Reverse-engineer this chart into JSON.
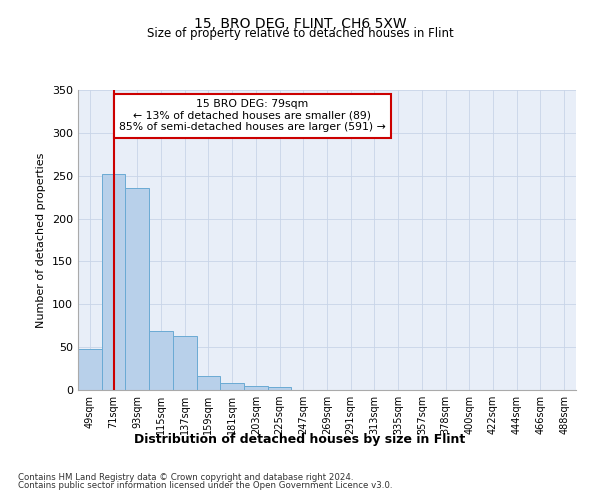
{
  "title": "15, BRO DEG, FLINT, CH6 5XW",
  "subtitle": "Size of property relative to detached houses in Flint",
  "xlabel": "Distribution of detached houses by size in Flint",
  "ylabel": "Number of detached properties",
  "footnote1": "Contains HM Land Registry data © Crown copyright and database right 2024.",
  "footnote2": "Contains public sector information licensed under the Open Government Licence v3.0.",
  "annotation_line1": "15 BRO DEG: 79sqm",
  "annotation_line2": "← 13% of detached houses are smaller (89)",
  "annotation_line3": "85% of semi-detached houses are larger (591) →",
  "bar_color": "#b8d0ea",
  "bar_edge_color": "#6aaad4",
  "vline_color": "#cc0000",
  "annotation_box_edge_color": "#cc0000",
  "background_color": "#ffffff",
  "plot_bg_color": "#e8eef8",
  "grid_color": "#c8d4e8",
  "categories": [
    "49sqm",
    "71sqm",
    "93sqm",
    "115sqm",
    "137sqm",
    "159sqm",
    "181sqm",
    "203sqm",
    "225sqm",
    "247sqm",
    "269sqm",
    "291sqm",
    "313sqm",
    "335sqm",
    "357sqm",
    "378sqm",
    "400sqm",
    "422sqm",
    "444sqm",
    "466sqm",
    "488sqm"
  ],
  "values": [
    48,
    252,
    236,
    69,
    63,
    16,
    8,
    5,
    3,
    0,
    0,
    0,
    0,
    0,
    0,
    0,
    0,
    0,
    0,
    0,
    0
  ],
  "vline_x": 1.0,
  "ylim": [
    0,
    350
  ],
  "yticks": [
    0,
    50,
    100,
    150,
    200,
    250,
    300,
    350
  ],
  "fig_width": 6.0,
  "fig_height": 5.0,
  "dpi": 100
}
